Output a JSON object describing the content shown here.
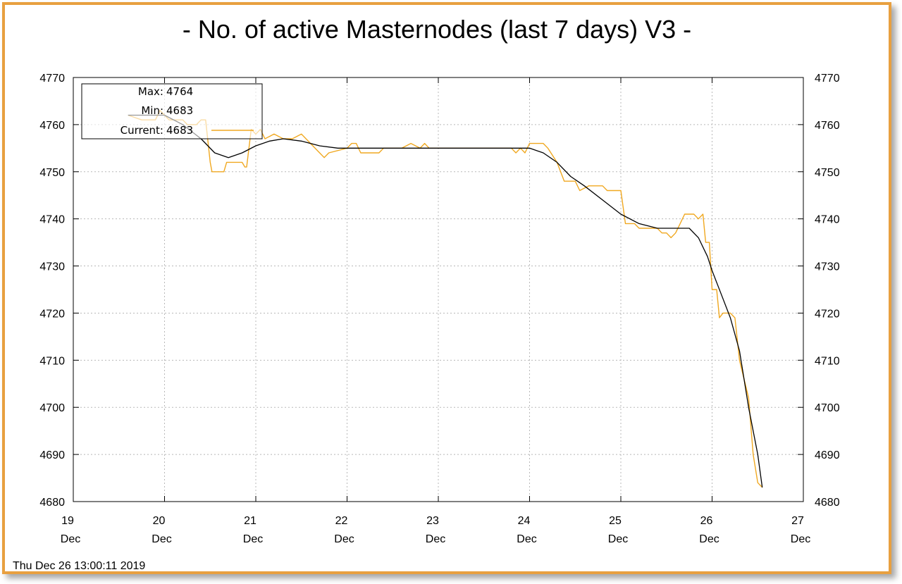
{
  "chart_data": {
    "type": "line",
    "title": "- No. of active Masternodes (last 7 days) V3 -",
    "timestamp": "Thu Dec 26 13:00:11 2019",
    "ylim": [
      4680,
      4770
    ],
    "y_ticks": [
      "4680",
      "4690",
      "4700",
      "4710",
      "4720",
      "4730",
      "4740",
      "4750",
      "4760",
      "4770"
    ],
    "xlim": [
      19,
      27
    ],
    "x_ticks": [
      {
        "day": "19",
        "month": "Dec"
      },
      {
        "day": "20",
        "month": "Dec"
      },
      {
        "day": "21",
        "month": "Dec"
      },
      {
        "day": "22",
        "month": "Dec"
      },
      {
        "day": "23",
        "month": "Dec"
      },
      {
        "day": "24",
        "month": "Dec"
      },
      {
        "day": "25",
        "month": "Dec"
      },
      {
        "day": "26",
        "month": "Dec"
      },
      {
        "day": "27",
        "month": "Dec"
      }
    ],
    "grid": true,
    "legend": {
      "max_label": "Max:",
      "max_value": "4764",
      "min_label": "Min:",
      "min_value": "4683",
      "current_label": "Current:",
      "current_value": "4683",
      "position": "top-left"
    },
    "series": [
      {
        "color": "#f0a820",
        "points": [
          [
            19.6,
            4762
          ],
          [
            19.75,
            4761
          ],
          [
            19.9,
            4761
          ],
          [
            19.95,
            4763
          ],
          [
            20.0,
            4762
          ],
          [
            20.05,
            4761
          ],
          [
            20.2,
            4761
          ],
          [
            20.25,
            4760
          ],
          [
            20.35,
            4760
          ],
          [
            20.4,
            4761
          ],
          [
            20.45,
            4761
          ],
          [
            20.5,
            4752
          ],
          [
            20.52,
            4750
          ],
          [
            20.65,
            4750
          ],
          [
            20.68,
            4752
          ],
          [
            20.85,
            4752
          ],
          [
            20.88,
            4751
          ],
          [
            20.9,
            4751
          ],
          [
            20.95,
            4759
          ],
          [
            21.0,
            4758
          ],
          [
            21.05,
            4759
          ],
          [
            21.1,
            4757
          ],
          [
            21.2,
            4758
          ],
          [
            21.3,
            4757
          ],
          [
            21.4,
            4757
          ],
          [
            21.5,
            4758
          ],
          [
            21.55,
            4757
          ],
          [
            21.7,
            4754
          ],
          [
            21.75,
            4753
          ],
          [
            21.8,
            4754
          ],
          [
            22.0,
            4755
          ],
          [
            22.05,
            4756
          ],
          [
            22.1,
            4756
          ],
          [
            22.15,
            4754
          ],
          [
            22.35,
            4754
          ],
          [
            22.4,
            4755
          ],
          [
            22.6,
            4755
          ],
          [
            22.7,
            4756
          ],
          [
            22.8,
            4755
          ],
          [
            22.85,
            4756
          ],
          [
            22.9,
            4755
          ],
          [
            23.0,
            4755
          ],
          [
            23.5,
            4755
          ],
          [
            23.8,
            4755
          ],
          [
            23.85,
            4754
          ],
          [
            23.9,
            4755
          ],
          [
            23.95,
            4754
          ],
          [
            24.0,
            4756
          ],
          [
            24.15,
            4756
          ],
          [
            24.2,
            4755
          ],
          [
            24.3,
            4752
          ],
          [
            24.38,
            4748
          ],
          [
            24.5,
            4748
          ],
          [
            24.55,
            4746
          ],
          [
            24.65,
            4747
          ],
          [
            24.8,
            4747
          ],
          [
            24.85,
            4746
          ],
          [
            25.0,
            4746
          ],
          [
            25.05,
            4739
          ],
          [
            25.15,
            4739
          ],
          [
            25.2,
            4738
          ],
          [
            25.4,
            4738
          ],
          [
            25.45,
            4737
          ],
          [
            25.5,
            4737
          ],
          [
            25.55,
            4736
          ],
          [
            25.6,
            4737
          ],
          [
            25.65,
            4739
          ],
          [
            25.7,
            4741
          ],
          [
            25.8,
            4741
          ],
          [
            25.85,
            4740
          ],
          [
            25.9,
            4741
          ],
          [
            25.93,
            4735
          ],
          [
            25.97,
            4735
          ],
          [
            26.0,
            4725
          ],
          [
            26.05,
            4725
          ],
          [
            26.08,
            4719
          ],
          [
            26.12,
            4720
          ],
          [
            26.2,
            4720
          ],
          [
            26.25,
            4719
          ],
          [
            26.3,
            4710
          ],
          [
            26.4,
            4702
          ],
          [
            26.45,
            4690
          ],
          [
            26.5,
            4684
          ],
          [
            26.55,
            4683
          ]
        ]
      },
      {
        "color": "#000000",
        "points": [
          [
            19.6,
            4762
          ],
          [
            19.8,
            4762
          ],
          [
            20.0,
            4762
          ],
          [
            20.2,
            4760
          ],
          [
            20.4,
            4757
          ],
          [
            20.55,
            4754
          ],
          [
            20.7,
            4753
          ],
          [
            20.85,
            4754
          ],
          [
            21.0,
            4755.5
          ],
          [
            21.15,
            4756.5
          ],
          [
            21.3,
            4757
          ],
          [
            21.5,
            4756.5
          ],
          [
            21.7,
            4755.5
          ],
          [
            21.9,
            4755
          ],
          [
            22.2,
            4755
          ],
          [
            22.6,
            4755
          ],
          [
            23.0,
            4755
          ],
          [
            23.5,
            4755
          ],
          [
            24.0,
            4755
          ],
          [
            24.15,
            4754
          ],
          [
            24.3,
            4752
          ],
          [
            24.45,
            4749
          ],
          [
            24.6,
            4747
          ],
          [
            24.8,
            4744
          ],
          [
            25.0,
            4741
          ],
          [
            25.2,
            4739
          ],
          [
            25.4,
            4738
          ],
          [
            25.6,
            4738
          ],
          [
            25.75,
            4738
          ],
          [
            25.85,
            4736
          ],
          [
            25.95,
            4732
          ],
          [
            26.0,
            4729
          ],
          [
            26.1,
            4724
          ],
          [
            26.2,
            4719
          ],
          [
            26.3,
            4712
          ],
          [
            26.4,
            4700
          ],
          [
            26.5,
            4690
          ],
          [
            26.55,
            4683
          ]
        ]
      }
    ]
  }
}
